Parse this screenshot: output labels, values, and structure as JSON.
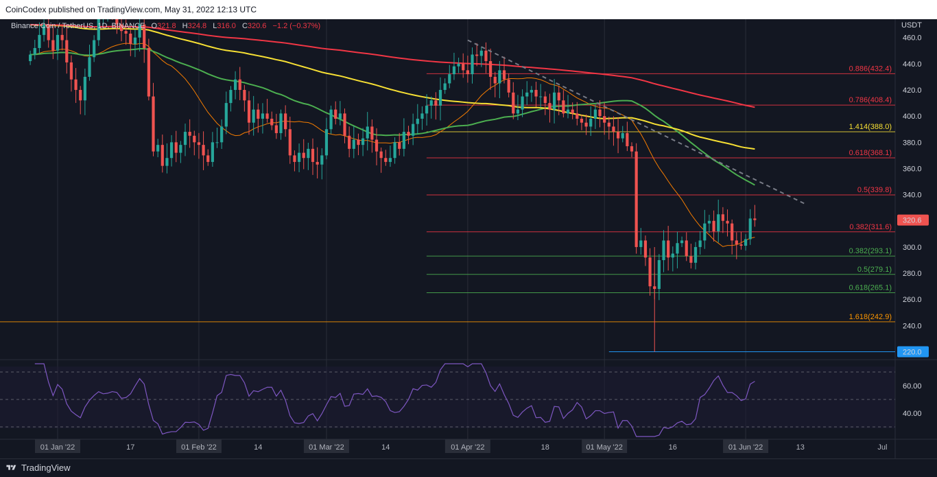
{
  "header": {
    "published": "CoinCodex published on TradingView.com, May 31, 2022 12:13 UTC"
  },
  "legend": {
    "symbol": "Binance Coin / TetherUS, 1D, BINANCE",
    "open_label": "O",
    "open": "321.8",
    "high_label": "H",
    "high": "324.8",
    "low_label": "L",
    "low": "316.0",
    "close_label": "C",
    "close": "320.6",
    "change": "−1.2 (−0.37%)"
  },
  "footer": {
    "brand": "TradingView"
  },
  "colors": {
    "background": "#131722",
    "up": "#26a69a",
    "down": "#ef5350",
    "ma200": "#f23645",
    "ma100": "#f7e034",
    "ma50": "#4caf50",
    "ma20": "#f57c00",
    "rsi": "#7e57c2",
    "trendline": "#787b86",
    "fib_red": "#f23645",
    "fib_green": "#4caf50",
    "fib_orange": "#ff9800",
    "fib_yellow": "#f7e034",
    "support": "#2196f3"
  },
  "chart_data": {
    "type": "candlestick",
    "currency": "USDT",
    "ylim": [
      214,
      474
    ],
    "y_ticks": [
      240,
      260,
      280,
      300,
      320,
      340,
      360,
      380,
      400,
      420,
      440,
      460
    ],
    "price_label": "320.6",
    "support_label": "220.0",
    "x_labels": [
      "01 Jan '22",
      "17",
      "01 Feb '22",
      "14",
      "01 Mar '22",
      "14",
      "01 Apr '22",
      "18",
      "01 May '22",
      "16",
      "01 Jun '22",
      "13",
      "Jul"
    ],
    "fib_levels": [
      {
        "ratio": "0.886",
        "price": 432.4,
        "label": "0.886(432.4)",
        "color": "#f23645"
      },
      {
        "ratio": "0.786",
        "price": 408.4,
        "label": "0.786(408.4)",
        "color": "#f23645"
      },
      {
        "ratio": "1.414",
        "price": 388.0,
        "label": "1.414(388.0)",
        "color": "#f7e034"
      },
      {
        "ratio": "0.618",
        "price": 368.1,
        "label": "0.618(368.1)",
        "color": "#f23645"
      },
      {
        "ratio": "0.5",
        "price": 339.8,
        "label": "0.5(339.8)",
        "color": "#f23645"
      },
      {
        "ratio": "0.382",
        "price": 311.6,
        "label": "0.382(311.6)",
        "color": "#f23645"
      },
      {
        "ratio": "0.382",
        "price": 293.1,
        "label": "0.382(293.1)",
        "color": "#4caf50"
      },
      {
        "ratio": "0.5",
        "price": 279.1,
        "label": "0.5(279.1)",
        "color": "#4caf50"
      },
      {
        "ratio": "0.618",
        "price": 265.1,
        "label": "0.618(265.1)",
        "color": "#4caf50"
      },
      {
        "ratio": "1.618",
        "price": 242.9,
        "label": "1.618(242.9)",
        "color": "#ff9800"
      }
    ],
    "support_level": {
      "price": 220.0,
      "label": "220.0"
    },
    "trendline": [
      [
        "2022-04-01",
        458
      ],
      [
        "2022-06-14",
        333
      ]
    ],
    "close_series": {
      "start": "2021-12-26",
      "values": [
        447,
        452,
        462,
        470,
        458,
        450,
        462,
        458,
        441,
        428,
        420,
        412,
        430,
        445,
        458,
        475,
        478,
        488,
        480,
        470,
        465,
        463,
        455,
        460,
        470,
        452,
        415,
        373,
        378,
        362,
        368,
        380,
        372,
        378,
        388,
        385,
        380,
        378,
        370,
        365,
        380,
        380,
        392,
        410,
        420,
        428,
        420,
        412,
        395,
        405,
        398,
        402,
        398,
        393,
        387,
        402,
        390,
        370,
        365,
        372,
        368,
        375,
        365,
        363,
        370,
        390,
        405,
        398,
        402,
        385,
        375,
        382,
        378,
        383,
        392,
        382,
        373,
        368,
        365,
        368,
        380,
        375,
        388,
        385,
        394,
        398,
        402,
        408,
        412,
        408,
        420,
        425,
        432,
        438,
        440,
        435,
        432,
        447,
        446,
        450,
        442,
        430,
        425,
        435,
        428,
        418,
        402,
        405,
        415,
        418,
        420,
        415,
        415,
        410,
        405,
        418,
        412,
        402,
        405,
        402,
        398,
        395,
        392,
        398,
        405,
        400,
        395,
        392,
        388,
        383,
        387,
        377,
        373,
        300,
        305,
        292,
        270,
        268,
        290,
        305,
        292,
        295,
        303,
        305,
        293,
        288,
        300,
        305,
        318,
        320,
        312,
        325,
        320,
        318,
        305,
        302,
        301,
        306,
        321.8,
        320.6
      ]
    },
    "moving_averages": [
      {
        "period": 20,
        "color": "#f57c00"
      },
      {
        "period": 50,
        "color": "#4caf50"
      },
      {
        "period": 100,
        "color": "#f7e034"
      },
      {
        "period": 200,
        "color": "#f23645"
      }
    ],
    "rsi": {
      "period": 14,
      "ylim": [
        22,
        77
      ],
      "ticks": [
        40.0,
        60.0
      ],
      "upper_band": 70,
      "lower_band": 30,
      "mid_band": 50
    }
  }
}
